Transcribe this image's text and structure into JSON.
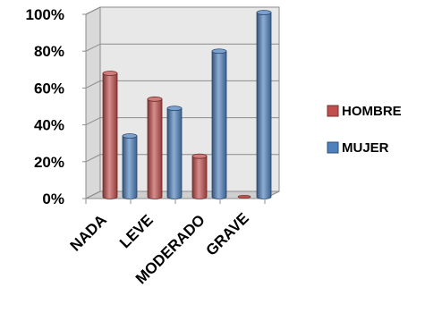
{
  "chart_data": {
    "type": "bar",
    "style": "3d-cylinder",
    "categories": [
      "NADA",
      "LEVE",
      "MODERADO",
      "GRAVE"
    ],
    "series": [
      {
        "name": "HOMBRE",
        "values": [
          67,
          53,
          22,
          0
        ],
        "color": "#c0504d"
      },
      {
        "name": "MUJER",
        "values": [
          33,
          48,
          79,
          100
        ],
        "color": "#4f81bd"
      }
    ],
    "ylim": [
      0,
      100
    ],
    "yticks": [
      "0%",
      "20%",
      "40%",
      "60%",
      "80%",
      "100%"
    ],
    "grid": true,
    "legend": "right"
  }
}
